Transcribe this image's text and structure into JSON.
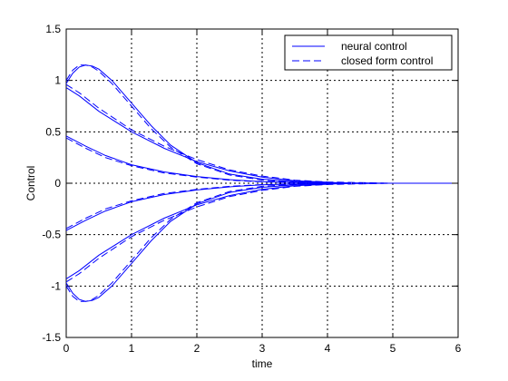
{
  "chart_data": {
    "type": "line",
    "xlabel": "time",
    "ylabel": "Control",
    "xlim": [
      0,
      6
    ],
    "ylim": [
      -1.5,
      1.5
    ],
    "xticks": [
      0,
      1,
      2,
      3,
      4,
      5,
      6
    ],
    "yticks": [
      -1.5,
      -1,
      -0.5,
      0,
      0.5,
      1,
      1.5
    ],
    "xtick_labels": [
      "0",
      "1",
      "2",
      "3",
      "4",
      "5",
      "6"
    ],
    "ytick_labels": [
      "-1.5",
      "-1",
      "-0.5",
      "0",
      "0.5",
      "1",
      "1.5"
    ],
    "grid": true,
    "legend_position": "top-right",
    "line_color": "#0000ff",
    "series": [
      {
        "name": "neural control",
        "style": "solid",
        "curves": [
          {
            "x": [
              0,
              0.1,
              0.2,
              0.3,
              0.4,
              0.5,
              0.7,
              1,
              1.3,
              1.6,
              2,
              2.5,
              3,
              3.5,
              4,
              4.35
            ],
            "y": [
              0.97,
              1.07,
              1.13,
              1.15,
              1.14,
              1.11,
              1.0,
              0.78,
              0.56,
              0.37,
              0.2,
              0.09,
              0.04,
              0.015,
              0.005,
              0
            ]
          },
          {
            "x": [
              0,
              0.2,
              0.5,
              1,
              1.5,
              2,
              2.5,
              3,
              3.5,
              4,
              4.35
            ],
            "y": [
              0.93,
              0.85,
              0.7,
              0.5,
              0.34,
              0.21,
              0.12,
              0.06,
              0.025,
              0.01,
              0
            ]
          },
          {
            "x": [
              0,
              0.3,
              0.6,
              1,
              1.5,
              2,
              2.5,
              3,
              3.5,
              4,
              4.35
            ],
            "y": [
              0.46,
              0.36,
              0.27,
              0.18,
              0.11,
              0.065,
              0.035,
              0.015,
              0.006,
              0.002,
              0
            ]
          },
          {
            "x": [
              0,
              0.3,
              0.6,
              1,
              1.5,
              2,
              2.5,
              3,
              3.5,
              4,
              4.35
            ],
            "y": [
              -0.46,
              -0.36,
              -0.27,
              -0.18,
              -0.11,
              -0.065,
              -0.035,
              -0.015,
              -0.006,
              -0.002,
              0
            ]
          },
          {
            "x": [
              0,
              0.2,
              0.5,
              1,
              1.5,
              2,
              2.5,
              3,
              3.5,
              4,
              4.35
            ],
            "y": [
              -0.93,
              -0.85,
              -0.7,
              -0.5,
              -0.34,
              -0.21,
              -0.12,
              -0.06,
              -0.025,
              -0.01,
              0
            ]
          },
          {
            "x": [
              0,
              0.1,
              0.2,
              0.3,
              0.4,
              0.5,
              0.7,
              1,
              1.3,
              1.6,
              2,
              2.5,
              3,
              3.5,
              4,
              4.35
            ],
            "y": [
              -0.97,
              -1.07,
              -1.13,
              -1.15,
              -1.14,
              -1.11,
              -1.0,
              -0.78,
              -0.56,
              -0.37,
              -0.2,
              -0.09,
              -0.04,
              -0.015,
              -0.005,
              0
            ]
          }
        ]
      },
      {
        "name": "closed form control",
        "style": "dashed",
        "curves": [
          {
            "x": [
              0,
              0.1,
              0.2,
              0.3,
              0.4,
              0.5,
              0.7,
              1,
              1.3,
              1.6,
              2,
              2.5,
              3,
              3.5,
              4,
              5,
              5.9
            ],
            "y": [
              1.0,
              1.1,
              1.15,
              1.15,
              1.13,
              1.09,
              0.97,
              0.75,
              0.53,
              0.35,
              0.19,
              0.08,
              0.03,
              0.01,
              0.004,
              0,
              0
            ]
          },
          {
            "x": [
              0,
              0.2,
              0.5,
              1,
              1.5,
              2,
              2.5,
              3,
              3.5,
              4,
              5,
              5.9
            ],
            "y": [
              0.96,
              0.88,
              0.73,
              0.52,
              0.36,
              0.23,
              0.13,
              0.07,
              0.03,
              0.012,
              0,
              0
            ]
          },
          {
            "x": [
              0,
              0.3,
              0.6,
              1,
              1.5,
              2,
              2.5,
              3,
              3.5,
              4,
              5,
              5.9
            ],
            "y": [
              0.44,
              0.34,
              0.25,
              0.17,
              0.1,
              0.06,
              0.03,
              0.013,
              0.005,
              0.002,
              0,
              0
            ]
          },
          {
            "x": [
              0,
              0.3,
              0.6,
              1,
              1.5,
              2,
              2.5,
              3,
              3.5,
              4,
              5,
              5.9
            ],
            "y": [
              -0.44,
              -0.34,
              -0.25,
              -0.17,
              -0.1,
              -0.06,
              -0.03,
              -0.013,
              -0.005,
              -0.002,
              0,
              0
            ]
          },
          {
            "x": [
              0,
              0.2,
              0.5,
              1,
              1.5,
              2,
              2.5,
              3,
              3.5,
              4,
              5,
              5.9
            ],
            "y": [
              -0.96,
              -0.88,
              -0.73,
              -0.52,
              -0.36,
              -0.23,
              -0.13,
              -0.07,
              -0.03,
              -0.012,
              0,
              0
            ]
          },
          {
            "x": [
              0,
              0.1,
              0.2,
              0.3,
              0.4,
              0.5,
              0.7,
              1,
              1.3,
              1.6,
              2,
              2.5,
              3,
              3.5,
              4,
              5,
              5.9
            ],
            "y": [
              -1.0,
              -1.1,
              -1.15,
              -1.15,
              -1.13,
              -1.09,
              -0.97,
              -0.75,
              -0.53,
              -0.35,
              -0.19,
              -0.08,
              -0.03,
              -0.01,
              -0.004,
              0,
              0
            ]
          }
        ]
      }
    ]
  }
}
